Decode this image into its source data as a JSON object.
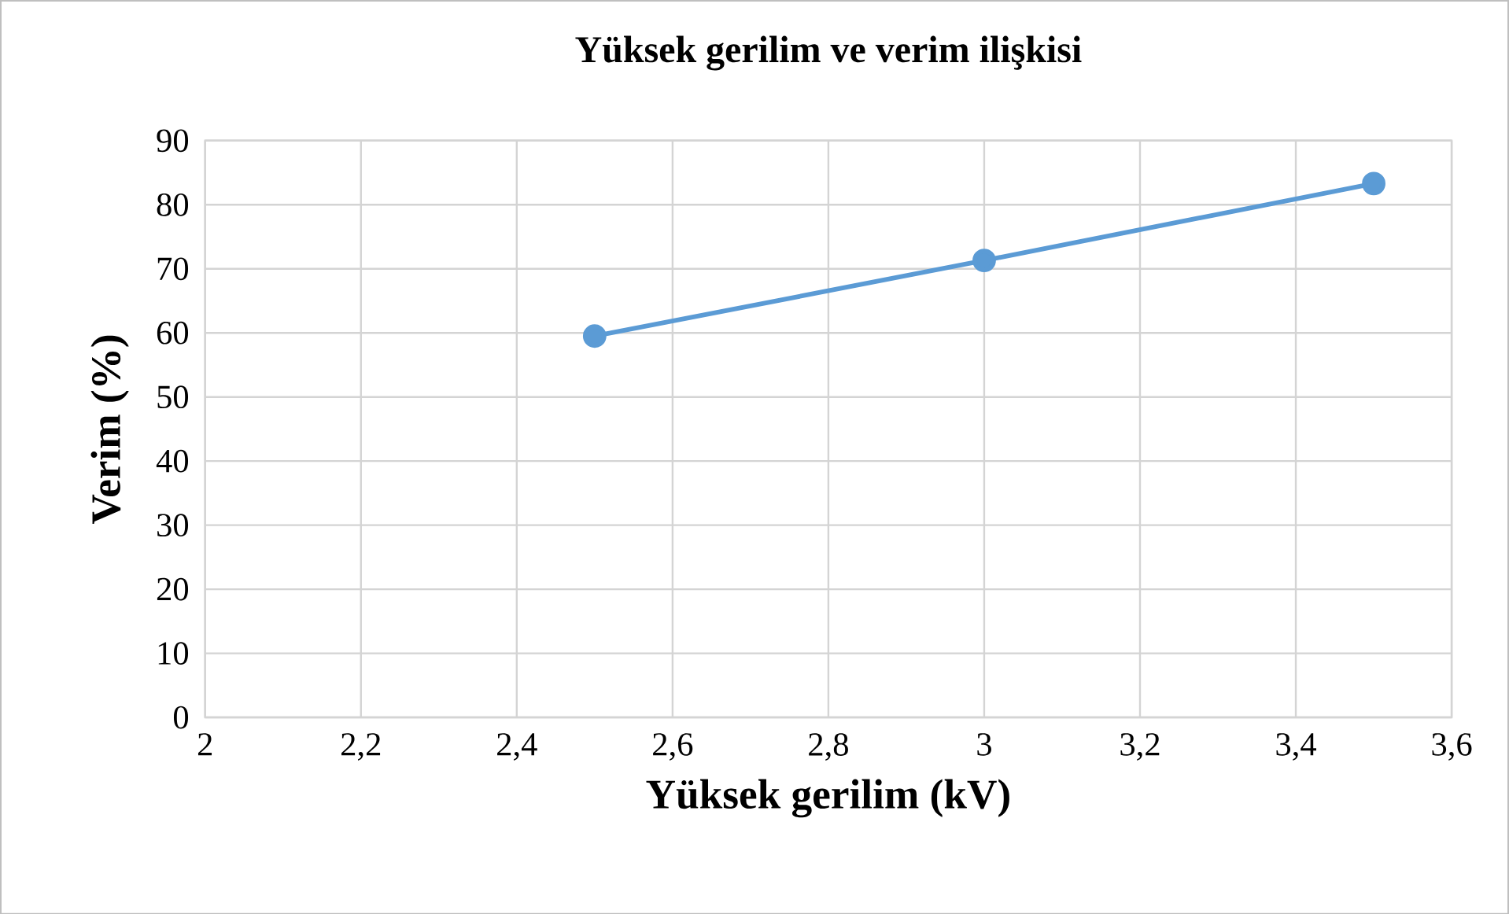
{
  "chart_data": {
    "type": "line",
    "title": "Yüksek gerilim ve verim ilişkisi",
    "xlabel": "Yüksek gerilim (kV)",
    "ylabel": "Verim (%)",
    "x": [
      2.5,
      3,
      3.5
    ],
    "series": [
      {
        "color": "#5b9bd5",
        "values": [
          59.5,
          71.3,
          83.3
        ]
      }
    ],
    "xlim": [
      2,
      3.6
    ],
    "ylim": [
      0,
      90
    ],
    "xticks": [
      2,
      {
        "value": 2.2,
        "label": "2,2"
      },
      {
        "value": 2.4,
        "label": "2,4"
      },
      {
        "value": 2.6,
        "label": "2,6"
      },
      {
        "value": 2.8,
        "label": "2,8"
      },
      3,
      {
        "value": 3.2,
        "label": "3,2"
      },
      {
        "value": 3.4,
        "label": "3,4"
      },
      {
        "value": 3.6,
        "label": "3,6"
      }
    ],
    "yticks": [
      0,
      10,
      20,
      30,
      40,
      50,
      60,
      70,
      80,
      90
    ],
    "grid": true,
    "marker": "circle",
    "line_style": "solid"
  }
}
